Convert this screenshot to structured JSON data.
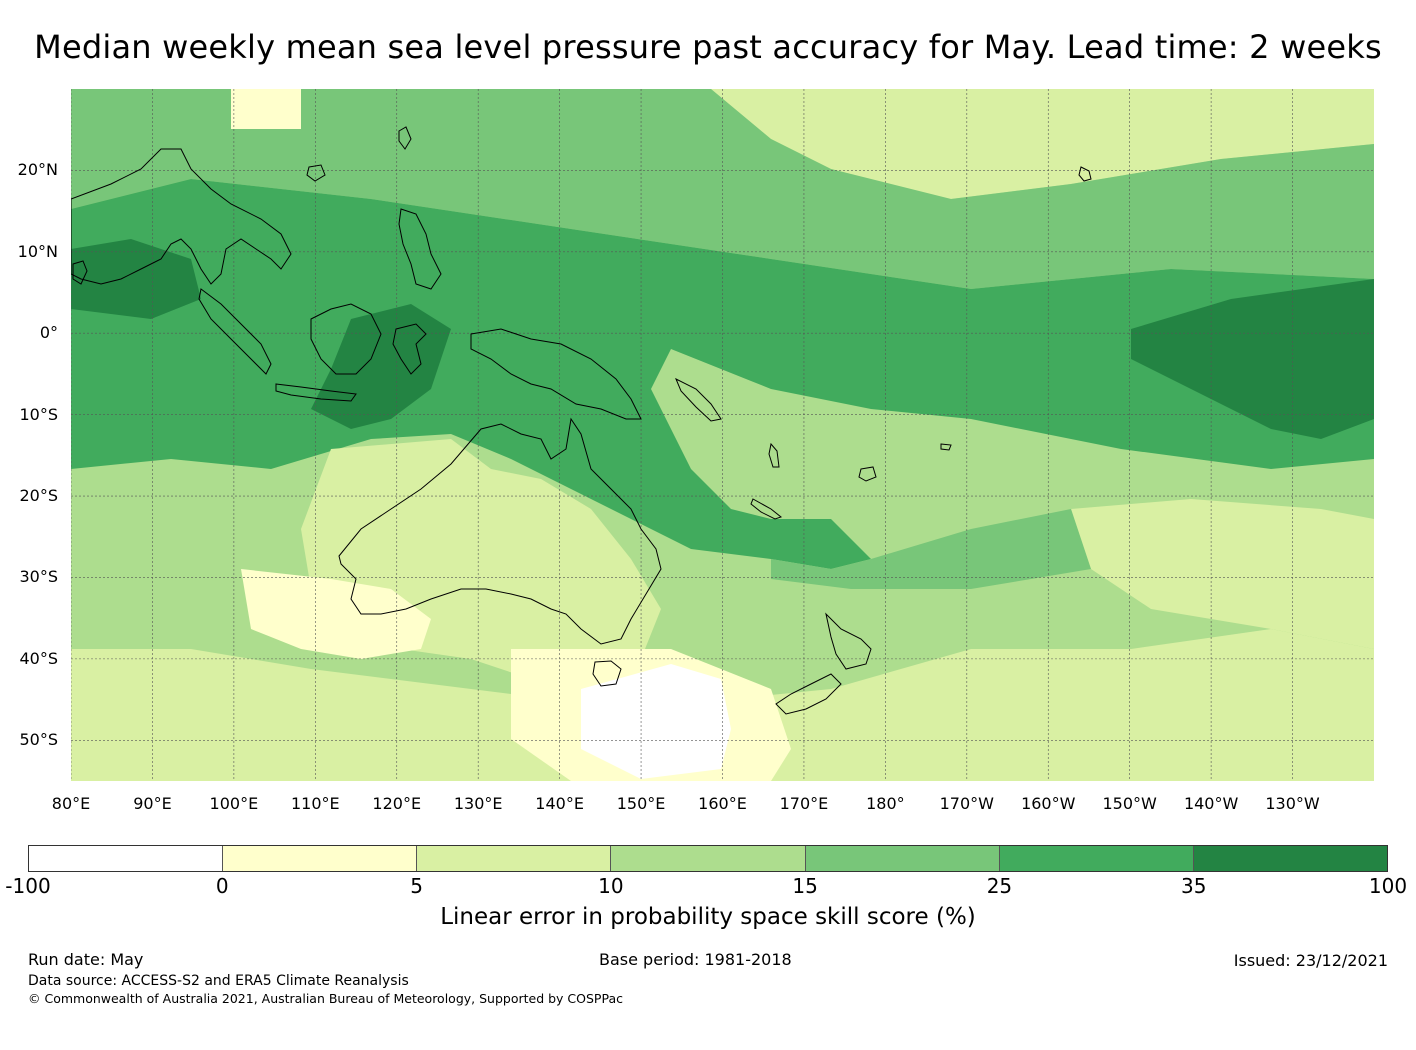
{
  "title": "Median weekly mean sea level pressure past accuracy for May. Lead time: 2 weeks",
  "map": {
    "lat_labels": [
      "20°N",
      "10°N",
      "0°",
      "10°S",
      "20°S",
      "30°S",
      "40°S",
      "50°S"
    ],
    "lon_labels": [
      "80°E",
      "90°E",
      "100°E",
      "110°E",
      "120°E",
      "130°E",
      "140°E",
      "150°E",
      "160°E",
      "170°E",
      "180°",
      "170°W",
      "160°W",
      "150°W",
      "140°W",
      "130°W"
    ],
    "extent": {
      "lon_min": 80,
      "lon_max": 240,
      "lat_min": -55,
      "lat_max": 30
    },
    "gridlines": true,
    "coastlines": true
  },
  "colorbar": {
    "ticks": [
      "-100",
      "0",
      "5",
      "10",
      "15",
      "25",
      "35",
      "100"
    ],
    "colors": [
      "#ffffff",
      "#ffffcc",
      "#d9f0a3",
      "#addd8e",
      "#78c679",
      "#41ab5d",
      "#238443"
    ],
    "label": "Linear error in probability space skill score (%)"
  },
  "footer": {
    "run_date": "Run date: May",
    "base_period": "Base period: 1981-2018",
    "issued": "Issued: 23/12/2021",
    "data_source": "Data source: ACCESS-S2 and ERA5 Climate Reanalysis",
    "copyright": "© Commonwealth of Australia 2021, Australian Bureau of Meteorology, Supported by COSPPac"
  }
}
